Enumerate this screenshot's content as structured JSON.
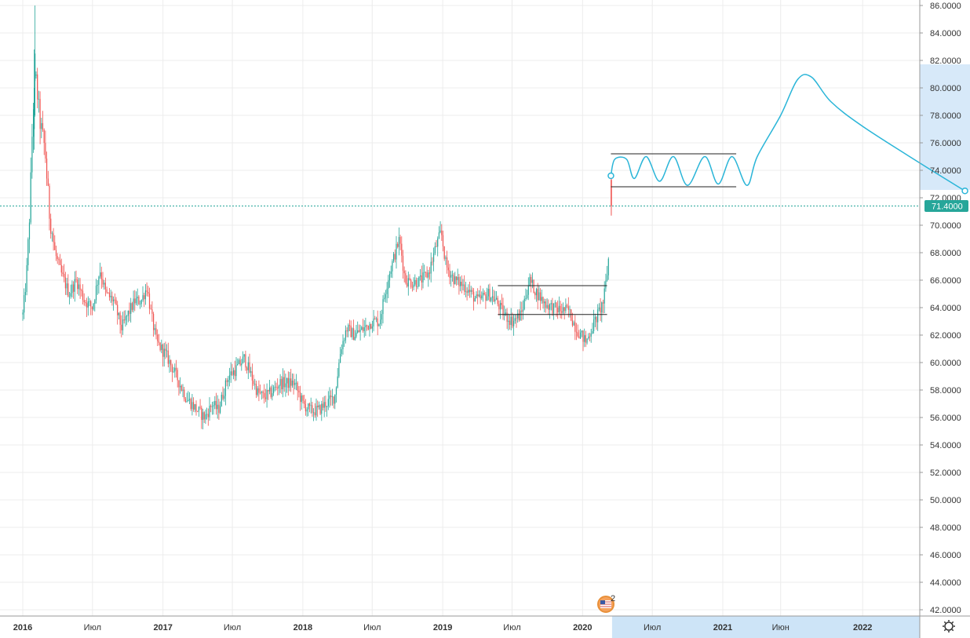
{
  "chart_data": {
    "type": "candlestick",
    "ylim": [
      41.5,
      86.2
    ],
    "y_ticks": [
      "86.0000",
      "84.0000",
      "82.0000",
      "80.0000",
      "78.0000",
      "76.0000",
      "74.0000",
      "72.0000",
      "70.0000",
      "68.0000",
      "66.0000",
      "64.0000",
      "62.0000",
      "60.0000",
      "58.0000",
      "56.0000",
      "54.0000",
      "52.0000",
      "50.0000",
      "48.0000",
      "46.0000",
      "44.0000",
      "42.0000"
    ],
    "x_labels": [
      "2016",
      "Июл",
      "2017",
      "Июл",
      "2018",
      "Июл",
      "2019",
      "Июл",
      "2020",
      "Июл",
      "2021",
      "Июн",
      "2022"
    ],
    "current_price": "71.4000",
    "price_path": [
      [
        "2016-01-01",
        63.5
      ],
      [
        "2016-01-10",
        66.0
      ],
      [
        "2016-01-20",
        71.5
      ],
      [
        "2016-01-27",
        78.0
      ],
      [
        "2016-02-03",
        81.0
      ],
      [
        "2016-02-15",
        77.5
      ],
      [
        "2016-02-28",
        75.5
      ],
      [
        "2016-03-10",
        71.0
      ],
      [
        "2016-03-25",
        68.0
      ],
      [
        "2016-04-10",
        66.5
      ],
      [
        "2016-05-01",
        65.0
      ],
      [
        "2016-05-20",
        66.0
      ],
      [
        "2016-06-10",
        64.5
      ],
      [
        "2016-07-01",
        64.0
      ],
      [
        "2016-07-20",
        66.8
      ],
      [
        "2016-08-05",
        65.0
      ],
      [
        "2016-08-25",
        64.5
      ],
      [
        "2016-09-15",
        62.5
      ],
      [
        "2016-10-01",
        63.5
      ],
      [
        "2016-10-20",
        64.5
      ],
      [
        "2016-11-05",
        64.5
      ],
      [
        "2016-11-20",
        65.5
      ],
      [
        "2016-12-01",
        63.5
      ],
      [
        "2016-12-15",
        61.5
      ],
      [
        "2017-01-10",
        60.5
      ],
      [
        "2017-02-05",
        59.0
      ],
      [
        "2017-03-01",
        57.5
      ],
      [
        "2017-04-01",
        56.5
      ],
      [
        "2017-04-20",
        56.0
      ],
      [
        "2017-05-10",
        57.0
      ],
      [
        "2017-05-25",
        56.5
      ],
      [
        "2017-06-20",
        59.0
      ],
      [
        "2017-07-10",
        59.5
      ],
      [
        "2017-08-01",
        60.3
      ],
      [
        "2017-08-20",
        59.0
      ],
      [
        "2017-09-05",
        57.8
      ],
      [
        "2017-09-20",
        57.5
      ],
      [
        "2017-10-10",
        57.8
      ],
      [
        "2017-11-01",
        58.5
      ],
      [
        "2017-11-20",
        58.5
      ],
      [
        "2017-12-10",
        58.5
      ],
      [
        "2018-01-01",
        57.0
      ],
      [
        "2018-01-20",
        56.5
      ],
      [
        "2018-02-10",
        56.5
      ],
      [
        "2018-03-01",
        57.0
      ],
      [
        "2018-03-25",
        57.5
      ],
      [
        "2018-04-10",
        61.0
      ],
      [
        "2018-04-25",
        62.5
      ],
      [
        "2018-05-15",
        62.0
      ],
      [
        "2018-06-10",
        62.5
      ],
      [
        "2018-07-01",
        63.0
      ],
      [
        "2018-07-20",
        63.0
      ],
      [
        "2018-08-10",
        66.0
      ],
      [
        "2018-08-25",
        67.5
      ],
      [
        "2018-09-10",
        69.0
      ],
      [
        "2018-09-25",
        66.0
      ],
      [
        "2018-10-15",
        65.8
      ],
      [
        "2018-11-05",
        66.0
      ],
      [
        "2018-11-25",
        66.5
      ],
      [
        "2018-12-15",
        68.5
      ],
      [
        "2018-12-28",
        69.5
      ],
      [
        "2019-01-10",
        67.0
      ],
      [
        "2019-02-01",
        66.0
      ],
      [
        "2019-03-01",
        65.5
      ],
      [
        "2019-04-01",
        64.5
      ],
      [
        "2019-05-01",
        65.0
      ],
      [
        "2019-05-20",
        64.5
      ],
      [
        "2019-06-10",
        63.5
      ],
      [
        "2019-07-01",
        63.0
      ],
      [
        "2019-07-25",
        63.5
      ],
      [
        "2019-08-15",
        66.0
      ],
      [
        "2019-09-05",
        65.0
      ],
      [
        "2019-09-25",
        64.3
      ],
      [
        "2019-10-15",
        64.0
      ],
      [
        "2019-11-05",
        63.8
      ],
      [
        "2019-11-25",
        63.8
      ],
      [
        "2019-12-15",
        62.5
      ],
      [
        "2020-01-10",
        61.5
      ],
      [
        "2020-01-25",
        62.5
      ],
      [
        "2020-02-10",
        63.5
      ],
      [
        "2020-02-25",
        64.5
      ],
      [
        "2020-03-05",
        66.5
      ],
      [
        "2020-03-12",
        68.5
      ]
    ],
    "last_bar": {
      "date": "2020-03-16",
      "open": 73.3,
      "high": 73.6,
      "low": 70.7,
      "close": 71.4
    },
    "boxes": [
      {
        "x0": "2019-05-25",
        "x1": "2020-03-05",
        "y_top": 65.6,
        "y_bottom": 63.5
      },
      {
        "x0": "2020-03-15",
        "x1": "2021-02-05",
        "y_top": 75.2,
        "y_bottom": 72.8
      }
    ],
    "forecast": [
      [
        "2020-03-15",
        73.6
      ],
      [
        "2020-03-25",
        74.8
      ],
      [
        "2020-04-25",
        74.8
      ],
      [
        "2020-05-15",
        73.4
      ],
      [
        "2020-06-15",
        75.0
      ],
      [
        "2020-07-20",
        73.2
      ],
      [
        "2020-08-25",
        75.0
      ],
      [
        "2020-10-01",
        72.9
      ],
      [
        "2020-11-15",
        75.0
      ],
      [
        "2020-12-20",
        73.0
      ],
      [
        "2021-01-25",
        75.0
      ],
      [
        "2021-03-05",
        72.9
      ],
      [
        "2021-04-01",
        75.0
      ],
      [
        "2021-06-01",
        78.0
      ],
      [
        "2021-07-15",
        80.6
      ],
      [
        "2021-08-20",
        80.8
      ],
      [
        "2021-10-10",
        79.0
      ],
      [
        "2022-01-01",
        77.2
      ],
      [
        "2022-06-01",
        74.5
      ],
      [
        "2022-09-25",
        72.5
      ]
    ],
    "colors": {
      "bull": "#26a69a",
      "bear": "#ef5350",
      "forecast": "#2ab5d8",
      "price_line": "#26a69a",
      "price_tag": "#26a69a",
      "grid": "#ececec",
      "axis_band": "#cde4f7"
    },
    "grid": true,
    "icons": [
      "usd-flag-icon",
      "settings-gear-icon"
    ]
  },
  "event_badge": {
    "count": "2"
  }
}
